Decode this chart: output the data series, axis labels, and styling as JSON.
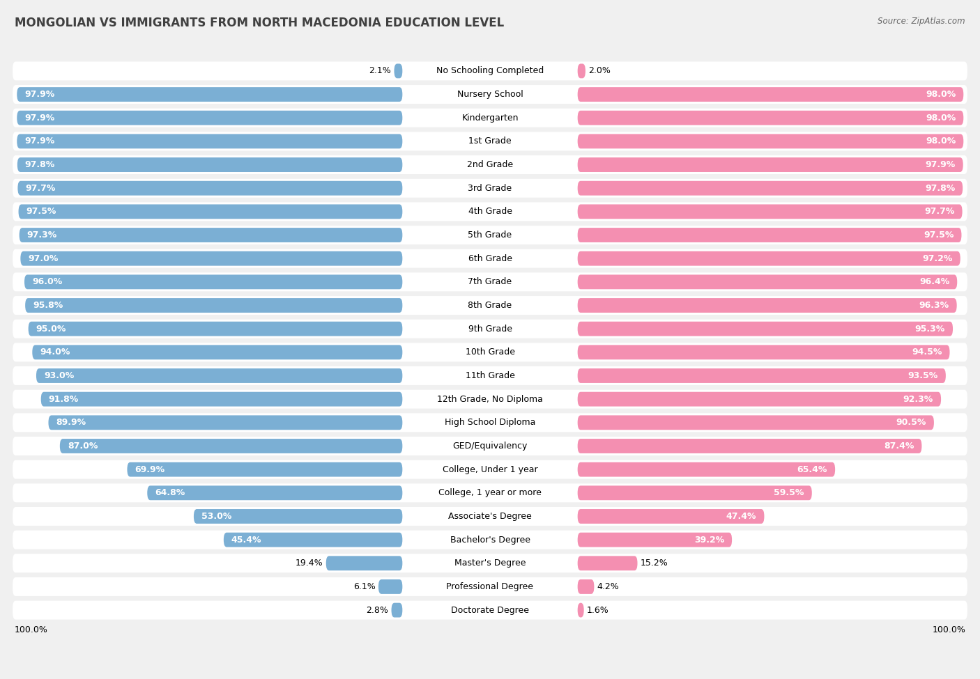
{
  "title": "MONGOLIAN VS IMMIGRANTS FROM NORTH MACEDONIA EDUCATION LEVEL",
  "source": "Source: ZipAtlas.com",
  "categories": [
    "No Schooling Completed",
    "Nursery School",
    "Kindergarten",
    "1st Grade",
    "2nd Grade",
    "3rd Grade",
    "4th Grade",
    "5th Grade",
    "6th Grade",
    "7th Grade",
    "8th Grade",
    "9th Grade",
    "10th Grade",
    "11th Grade",
    "12th Grade, No Diploma",
    "High School Diploma",
    "GED/Equivalency",
    "College, Under 1 year",
    "College, 1 year or more",
    "Associate's Degree",
    "Bachelor's Degree",
    "Master's Degree",
    "Professional Degree",
    "Doctorate Degree"
  ],
  "mongolian": [
    2.1,
    97.9,
    97.9,
    97.9,
    97.8,
    97.7,
    97.5,
    97.3,
    97.0,
    96.0,
    95.8,
    95.0,
    94.0,
    93.0,
    91.8,
    89.9,
    87.0,
    69.9,
    64.8,
    53.0,
    45.4,
    19.4,
    6.1,
    2.8
  ],
  "north_macedonia": [
    2.0,
    98.0,
    98.0,
    98.0,
    97.9,
    97.8,
    97.7,
    97.5,
    97.2,
    96.4,
    96.3,
    95.3,
    94.5,
    93.5,
    92.3,
    90.5,
    87.4,
    65.4,
    59.5,
    47.4,
    39.2,
    15.2,
    4.2,
    1.6
  ],
  "mongolian_color": "#7bafd4",
  "north_macedonia_color": "#f48fb1",
  "background_color": "#f0f0f0",
  "label_fontsize": 9.0,
  "value_fontsize": 9.0,
  "title_fontsize": 12
}
